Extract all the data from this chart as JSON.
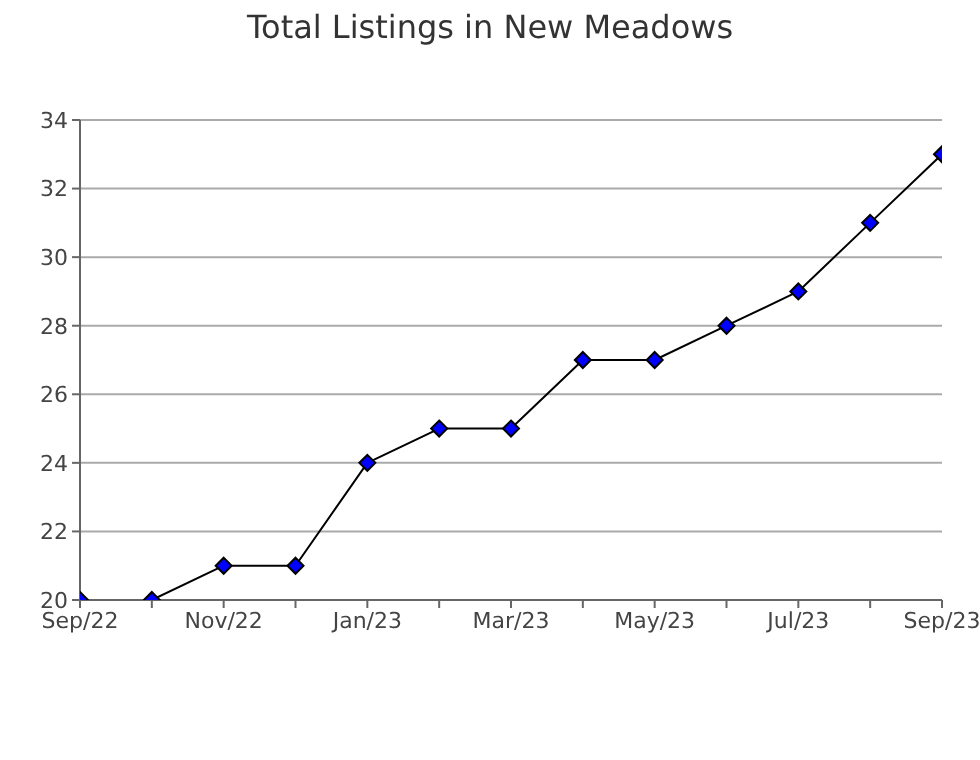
{
  "chart_data": {
    "type": "line",
    "title": "Total Listings in New Meadows",
    "categories": [
      "Sep/22",
      null,
      "Nov/22",
      null,
      "Jan/23",
      null,
      "Mar/23",
      null,
      "May/23",
      null,
      "Jul/23",
      null,
      "Sep/23"
    ],
    "series": [
      {
        "color": "#0000ff",
        "values": [
          20,
          20,
          21,
          21,
          24,
          25,
          25,
          27,
          27,
          28,
          29,
          31,
          33
        ]
      }
    ],
    "ylim": [
      20,
      34
    ],
    "yticks": [
      20,
      22,
      24,
      26,
      28,
      30,
      32,
      34
    ],
    "grid": "y",
    "marker": "diamond",
    "line_style": "solid",
    "legend": false
  }
}
